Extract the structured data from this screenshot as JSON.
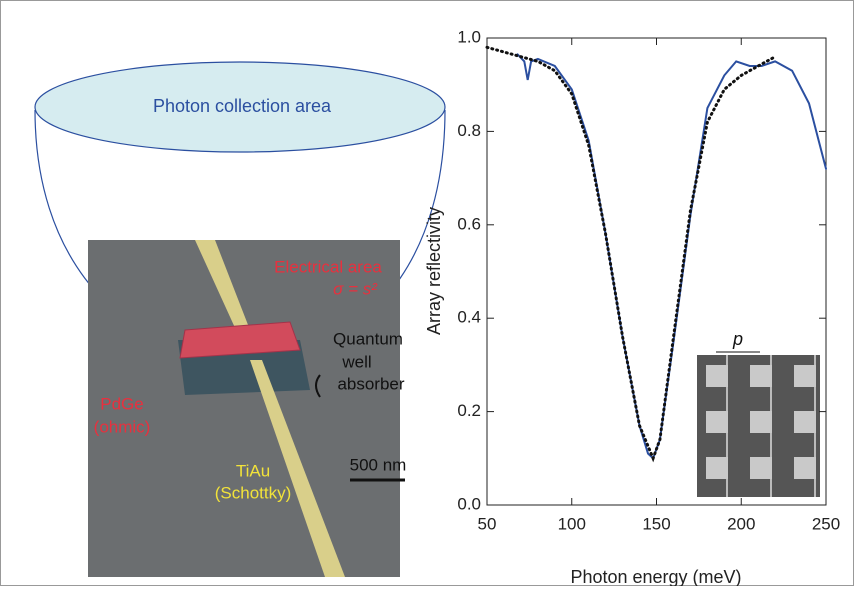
{
  "diagram": {
    "title": "Photon collection area",
    "labels": [
      "Electrical area",
      "σ = s²",
      "Quantum",
      "well",
      "absorber",
      "PdGe",
      "(ohmic)",
      "TiAu",
      "(Schottky)",
      "500 nm"
    ]
  },
  "chart_data": {
    "type": "line",
    "xlabel": "Photon energy (meV)",
    "ylabel": "Array reflectivity",
    "annotation": "p",
    "xlim": [
      50,
      250
    ],
    "ylim": [
      0,
      1.0
    ],
    "xticks": [
      50,
      100,
      150,
      200,
      250
    ],
    "yticks": [
      {
        "value": 0,
        "label": "0.0"
      },
      0.2,
      0.4,
      0.6,
      0.8,
      {
        "value": 1.0,
        "label": "1.0"
      }
    ],
    "series": [
      {
        "color": "#2b4fa0",
        "dash": false,
        "x": [
          68,
          72,
          74,
          76,
          80,
          90,
          100,
          110,
          120,
          130,
          140,
          145,
          148,
          152,
          160,
          170,
          180,
          190,
          197,
          205,
          212,
          220,
          230,
          240,
          250
        ],
        "values": [
          0.965,
          0.95,
          0.91,
          0.95,
          0.955,
          0.94,
          0.89,
          0.78,
          0.58,
          0.36,
          0.17,
          0.11,
          0.1,
          0.14,
          0.35,
          0.62,
          0.85,
          0.92,
          0.95,
          0.94,
          0.94,
          0.95,
          0.93,
          0.86,
          0.72
        ]
      },
      {
        "color": "#111111",
        "dash": true,
        "x": [
          50,
          60,
          70,
          80,
          90,
          100,
          110,
          120,
          130,
          140,
          148,
          152,
          160,
          170,
          180,
          190,
          200,
          210,
          220
        ],
        "values": [
          0.98,
          0.97,
          0.96,
          0.95,
          0.93,
          0.88,
          0.77,
          0.58,
          0.36,
          0.17,
          0.1,
          0.14,
          0.36,
          0.63,
          0.82,
          0.89,
          0.92,
          0.94,
          0.96
        ]
      }
    ]
  }
}
